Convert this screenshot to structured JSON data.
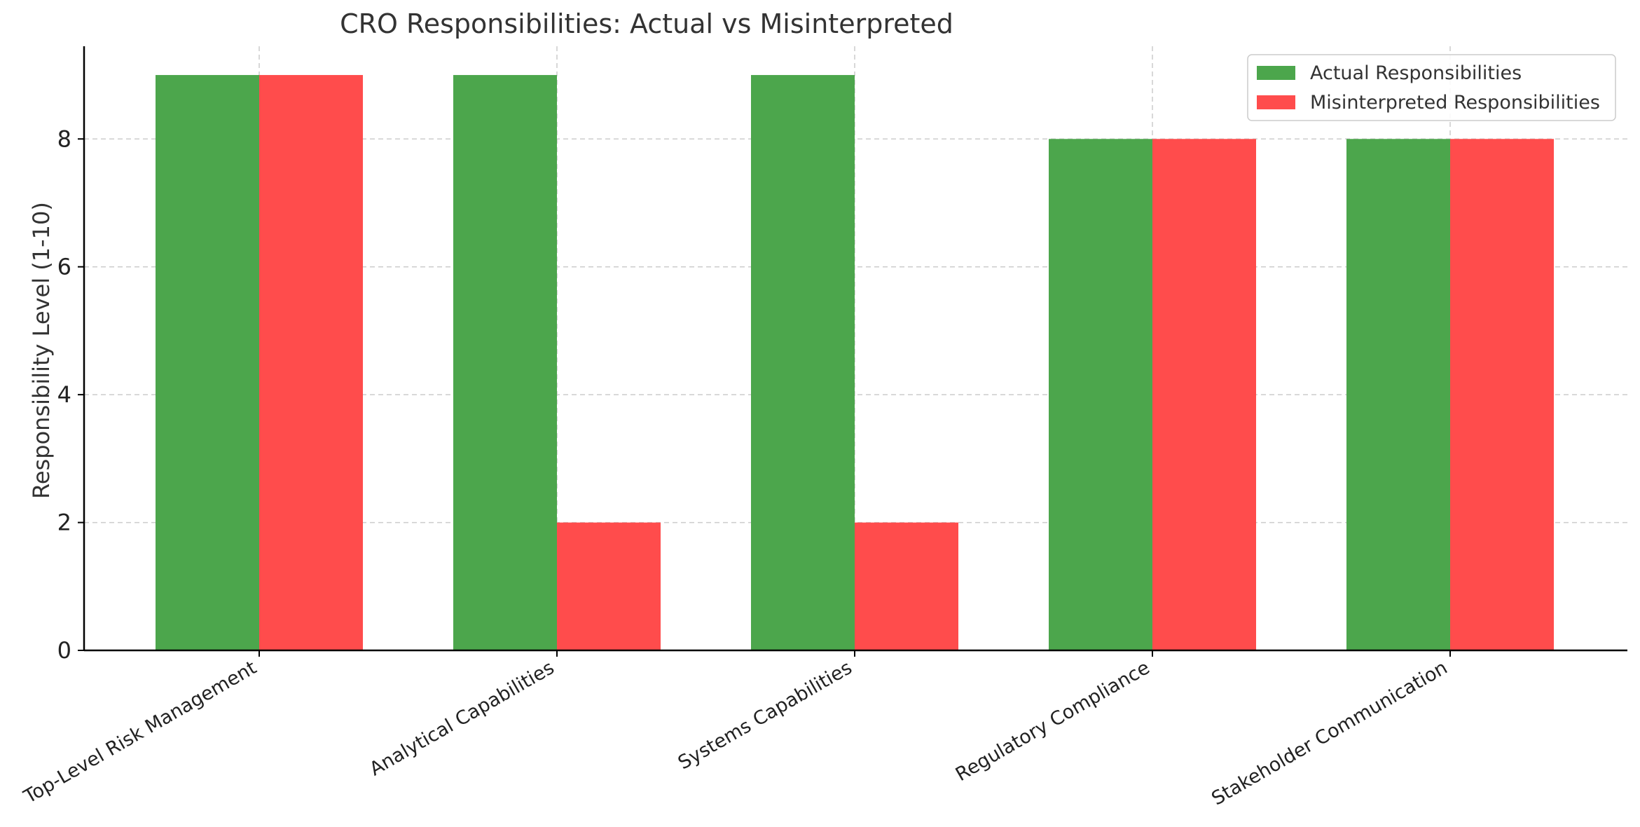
{
  "chart_data": {
    "type": "bar",
    "title": "CRO Responsibilities: Actual vs Misinterpreted",
    "xlabel": "",
    "ylabel": "Responsibility Level (1-10)",
    "categories": [
      "Top-Level Risk Management",
      "Analytical Capabilities",
      "Systems Capabilities",
      "Regulatory Compliance",
      "Stakeholder Communication"
    ],
    "series": [
      {
        "name": "Actual Responsibilities",
        "values": [
          9,
          9,
          9,
          8,
          8
        ],
        "color": "#4ca64c"
      },
      {
        "name": "Misinterpreted Responsibilities",
        "values": [
          9,
          2,
          2,
          8,
          8
        ],
        "color": "#ff4c4c"
      }
    ],
    "ylim": [
      0,
      9.45
    ],
    "yticks": [
      0,
      2,
      4,
      6,
      8
    ],
    "grid": true,
    "legend_position": "top-right"
  }
}
